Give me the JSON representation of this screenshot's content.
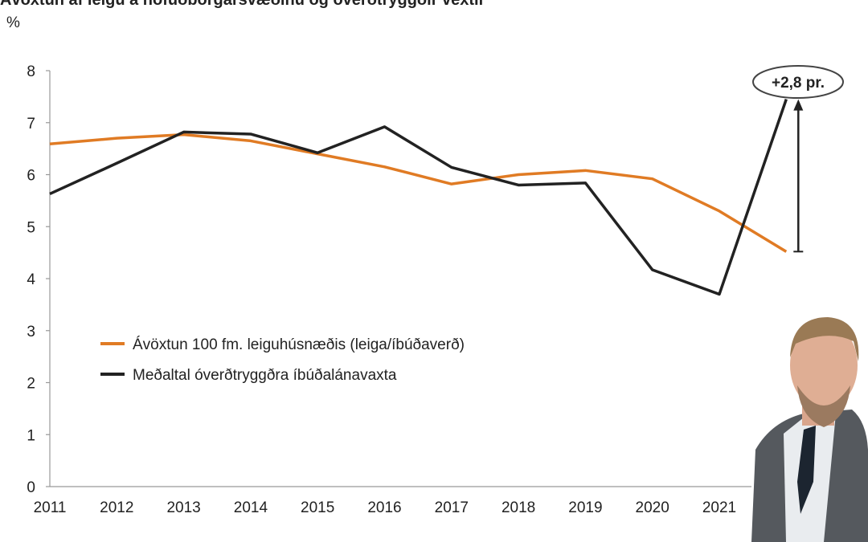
{
  "chart_data": {
    "type": "line",
    "title": "Ávöxtun af leigu á höfuðborgarsvæðinu og óverðtryggðir vextir",
    "y_label": "%",
    "categories": [
      "2011",
      "2012",
      "2013",
      "2014",
      "2015",
      "2016",
      "2017",
      "2018",
      "2019",
      "2020",
      "2021",
      null
    ],
    "series": [
      {
        "name": "Ávöxtun 100 fm. leiguhúsnæðis (leiga/íbúðaverð)",
        "color": "#e07b24",
        "values": [
          6.59,
          6.7,
          6.77,
          6.65,
          6.4,
          6.15,
          5.82,
          6.0,
          6.08,
          5.92,
          5.3,
          4.52
        ]
      },
      {
        "name": "Meðaltal óverðtryggðra íbúðalánavaxta",
        "color": "#222222",
        "values": [
          5.63,
          6.22,
          6.82,
          6.78,
          6.42,
          6.92,
          6.14,
          5.8,
          5.84,
          4.17,
          3.7,
          7.45
        ]
      }
    ],
    "annotation": "+2,8 pr.",
    "ylim": [
      0,
      8
    ],
    "yticks": [
      0,
      1,
      2,
      3,
      4,
      5,
      6,
      7,
      8
    ],
    "grid": false
  }
}
